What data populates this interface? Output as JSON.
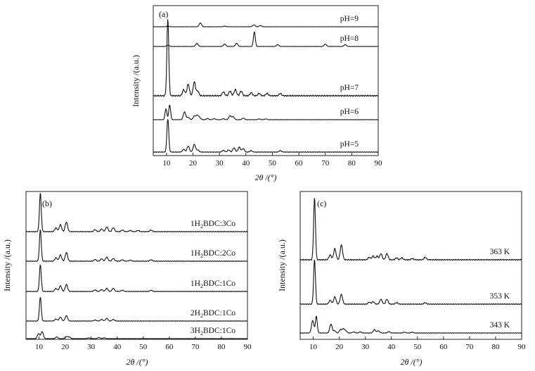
{
  "chart_data": [
    {
      "panel_label": "(a)",
      "type": "line",
      "xlabel": "2θ /(°)",
      "ylabel": "Intensity /(a.u.)",
      "xlim": [
        5,
        90
      ],
      "xticks": [
        10,
        20,
        30,
        40,
        50,
        60,
        70,
        80,
        90
      ],
      "series": [
        {
          "name": "pH=9",
          "peaks": [
            [
              10.5,
              0.05
            ],
            [
              22.8,
              0.3
            ],
            [
              32,
              0.05
            ],
            [
              43,
              0.15
            ],
            [
              45.5,
              0.1
            ]
          ]
        },
        {
          "name": "pH=8",
          "peaks": [
            [
              10.5,
              0.08
            ],
            [
              21.5,
              0.2
            ],
            [
              32,
              0.15
            ],
            [
              36.5,
              0.2
            ],
            [
              43.2,
              0.95
            ],
            [
              52,
              0.12
            ],
            [
              70,
              0.15
            ],
            [
              77.5,
              0.12
            ]
          ]
        },
        {
          "name": "pH=7",
          "peaks": [
            [
              10.5,
              1.0
            ],
            [
              16.5,
              0.08
            ],
            [
              18.2,
              0.15
            ],
            [
              20.5,
              0.18
            ],
            [
              21.8,
              0.06
            ],
            [
              31.5,
              0.05
            ],
            [
              34,
              0.06
            ],
            [
              36,
              0.08
            ],
            [
              38.2,
              0.06
            ],
            [
              42,
              0.04
            ],
            [
              45,
              0.03
            ],
            [
              48,
              0.03
            ],
            [
              53,
              0.03
            ]
          ]
        },
        {
          "name": "pH=6",
          "peaks": [
            [
              9.8,
              0.55
            ],
            [
              11.2,
              0.75
            ],
            [
              16.8,
              0.4
            ],
            [
              18.2,
              0.12
            ],
            [
              20.5,
              0.18
            ],
            [
              21.6,
              0.22
            ],
            [
              22.5,
              0.1
            ],
            [
              25.5,
              0.06
            ],
            [
              28,
              0.05
            ],
            [
              31.5,
              0.05
            ],
            [
              34,
              0.2
            ],
            [
              35.2,
              0.15
            ],
            [
              39,
              0.08
            ],
            [
              45,
              0.04
            ],
            [
              47.5,
              0.04
            ]
          ]
        },
        {
          "name": "pH=5",
          "peaks": [
            [
              10.5,
              0.95
            ],
            [
              16.5,
              0.08
            ],
            [
              18.2,
              0.17
            ],
            [
              20.5,
              0.22
            ],
            [
              21.8,
              0.06
            ],
            [
              31.5,
              0.05
            ],
            [
              33.5,
              0.06
            ],
            [
              35.5,
              0.12
            ],
            [
              37.5,
              0.14
            ],
            [
              39,
              0.1
            ],
            [
              42,
              0.04
            ],
            [
              53,
              0.04
            ]
          ]
        }
      ]
    },
    {
      "panel_label": "(b)",
      "type": "line",
      "xlabel": "2θ /(°)",
      "ylabel": "Intensity /(a.u.)",
      "xlim": [
        5,
        90
      ],
      "xticks": [
        10,
        20,
        30,
        40,
        50,
        60,
        70,
        80,
        90
      ],
      "series": [
        {
          "name": "1H2BDC:3Co",
          "peaks": [
            [
              10.5,
              1.0
            ],
            [
              16.5,
              0.1
            ],
            [
              18.2,
              0.18
            ],
            [
              20.5,
              0.25
            ],
            [
              31.5,
              0.05
            ],
            [
              34,
              0.07
            ],
            [
              36,
              0.12
            ],
            [
              38.5,
              0.1
            ],
            [
              42,
              0.04
            ],
            [
              45,
              0.03
            ],
            [
              48,
              0.03
            ],
            [
              53,
              0.04
            ]
          ]
        },
        {
          "name": "1H2BDC:2Co",
          "peaks": [
            [
              10.5,
              0.9
            ],
            [
              16.5,
              0.1
            ],
            [
              18.2,
              0.18
            ],
            [
              20.5,
              0.25
            ],
            [
              31.5,
              0.05
            ],
            [
              34,
              0.07
            ],
            [
              36,
              0.12
            ],
            [
              38.5,
              0.08
            ],
            [
              42,
              0.04
            ],
            [
              45,
              0.03
            ],
            [
              53,
              0.04
            ]
          ]
        },
        {
          "name": "1H2BDC:1Co",
          "peaks": [
            [
              10.5,
              0.85
            ],
            [
              16.5,
              0.1
            ],
            [
              18.2,
              0.18
            ],
            [
              20.5,
              0.22
            ],
            [
              31.5,
              0.05
            ],
            [
              34,
              0.06
            ],
            [
              36,
              0.1
            ],
            [
              38.5,
              0.1
            ],
            [
              42,
              0.04
            ],
            [
              53,
              0.04
            ]
          ]
        },
        {
          "name": "2H2BDC:1Co",
          "peaks": [
            [
              10.5,
              0.9
            ],
            [
              16.5,
              0.08
            ],
            [
              18.2,
              0.15
            ],
            [
              20.5,
              0.2
            ],
            [
              31.5,
              0.04
            ],
            [
              34,
              0.06
            ],
            [
              36,
              0.1
            ],
            [
              38.5,
              0.06
            ]
          ]
        },
        {
          "name": "3H2BDC:1Co",
          "peaks": [
            [
              9.8,
              0.35
            ],
            [
              11.2,
              0.5
            ],
            [
              16.8,
              0.12
            ],
            [
              20.5,
              0.15
            ],
            [
              21.6,
              0.12
            ],
            [
              29,
              0.05
            ],
            [
              33,
              0.08
            ],
            [
              35,
              0.06
            ]
          ]
        }
      ]
    },
    {
      "panel_label": "(c)",
      "type": "line",
      "xlabel": "2θ /(°)",
      "ylabel": "Intensity /(a.u.)",
      "xlim": [
        5,
        90
      ],
      "xticks": [
        10,
        20,
        30,
        40,
        50,
        60,
        70,
        80,
        90
      ],
      "series": [
        {
          "name": "363 K",
          "peaks": [
            [
              10.5,
              1.0
            ],
            [
              16.5,
              0.08
            ],
            [
              18.3,
              0.18
            ],
            [
              20.8,
              0.24
            ],
            [
              31.5,
              0.04
            ],
            [
              33,
              0.06
            ],
            [
              34.5,
              0.06
            ],
            [
              36,
              0.1
            ],
            [
              38.3,
              0.1
            ],
            [
              42,
              0.03
            ],
            [
              44,
              0.03
            ],
            [
              48,
              0.02
            ],
            [
              53,
              0.04
            ]
          ]
        },
        {
          "name": "353 K",
          "peaks": [
            [
              10.5,
              0.9
            ],
            [
              16.5,
              0.08
            ],
            [
              18.3,
              0.15
            ],
            [
              20.8,
              0.2
            ],
            [
              31.5,
              0.04
            ],
            [
              33,
              0.05
            ],
            [
              36,
              0.1
            ],
            [
              38.3,
              0.1
            ],
            [
              42,
              0.03
            ],
            [
              53,
              0.03
            ]
          ]
        },
        {
          "name": "343 K",
          "peaks": [
            [
              9.8,
              0.45
            ],
            [
              11.2,
              0.6
            ],
            [
              16.8,
              0.32
            ],
            [
              18.2,
              0.08
            ],
            [
              20.5,
              0.12
            ],
            [
              21.6,
              0.14
            ],
            [
              22.5,
              0.07
            ],
            [
              25.5,
              0.04
            ],
            [
              28,
              0.04
            ],
            [
              33.5,
              0.12
            ],
            [
              35,
              0.08
            ],
            [
              39,
              0.05
            ],
            [
              45,
              0.03
            ],
            [
              48,
              0.03
            ]
          ]
        }
      ]
    }
  ]
}
